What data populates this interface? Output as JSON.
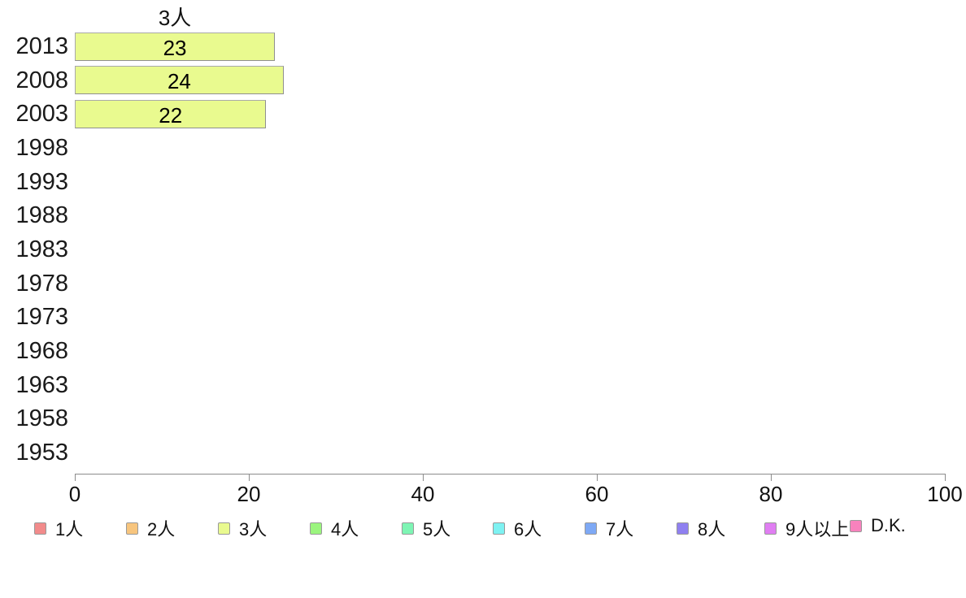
{
  "chart_data": {
    "type": "bar",
    "orientation": "horizontal",
    "title": "3人",
    "categories": [
      "2013",
      "2008",
      "2003",
      "1998",
      "1993",
      "1988",
      "1983",
      "1978",
      "1973",
      "1968",
      "1963",
      "1958",
      "1953"
    ],
    "series": [
      {
        "name": "3人",
        "color": "#e9fa8f",
        "values": [
          23,
          24,
          22,
          null,
          null,
          null,
          null,
          null,
          null,
          null,
          null,
          null,
          null
        ]
      }
    ],
    "value_labels": [
      "23",
      "24",
      "22"
    ],
    "xlim": [
      0,
      100
    ],
    "x_ticks": [
      0,
      20,
      40,
      60,
      80,
      100
    ],
    "grid": false,
    "legend_position": "bottom",
    "legend": [
      {
        "label": "1人",
        "color": "#f28b8b"
      },
      {
        "label": "2人",
        "color": "#f7c57e"
      },
      {
        "label": "3人",
        "color": "#e9fa8f"
      },
      {
        "label": "4人",
        "color": "#9bf57e"
      },
      {
        "label": "5人",
        "color": "#7ef5b4"
      },
      {
        "label": "6人",
        "color": "#7ef2f2"
      },
      {
        "label": "7人",
        "color": "#7ea9f5"
      },
      {
        "label": "8人",
        "color": "#8f80f0"
      },
      {
        "label": "9人以上",
        "color": "#e07ef2"
      },
      {
        "label": "D.K.",
        "color": "#f782bd"
      }
    ],
    "colors": {
      "bar_border": "#a9a9a9",
      "axis": "#8c8c8c",
      "text": "#111111"
    }
  }
}
